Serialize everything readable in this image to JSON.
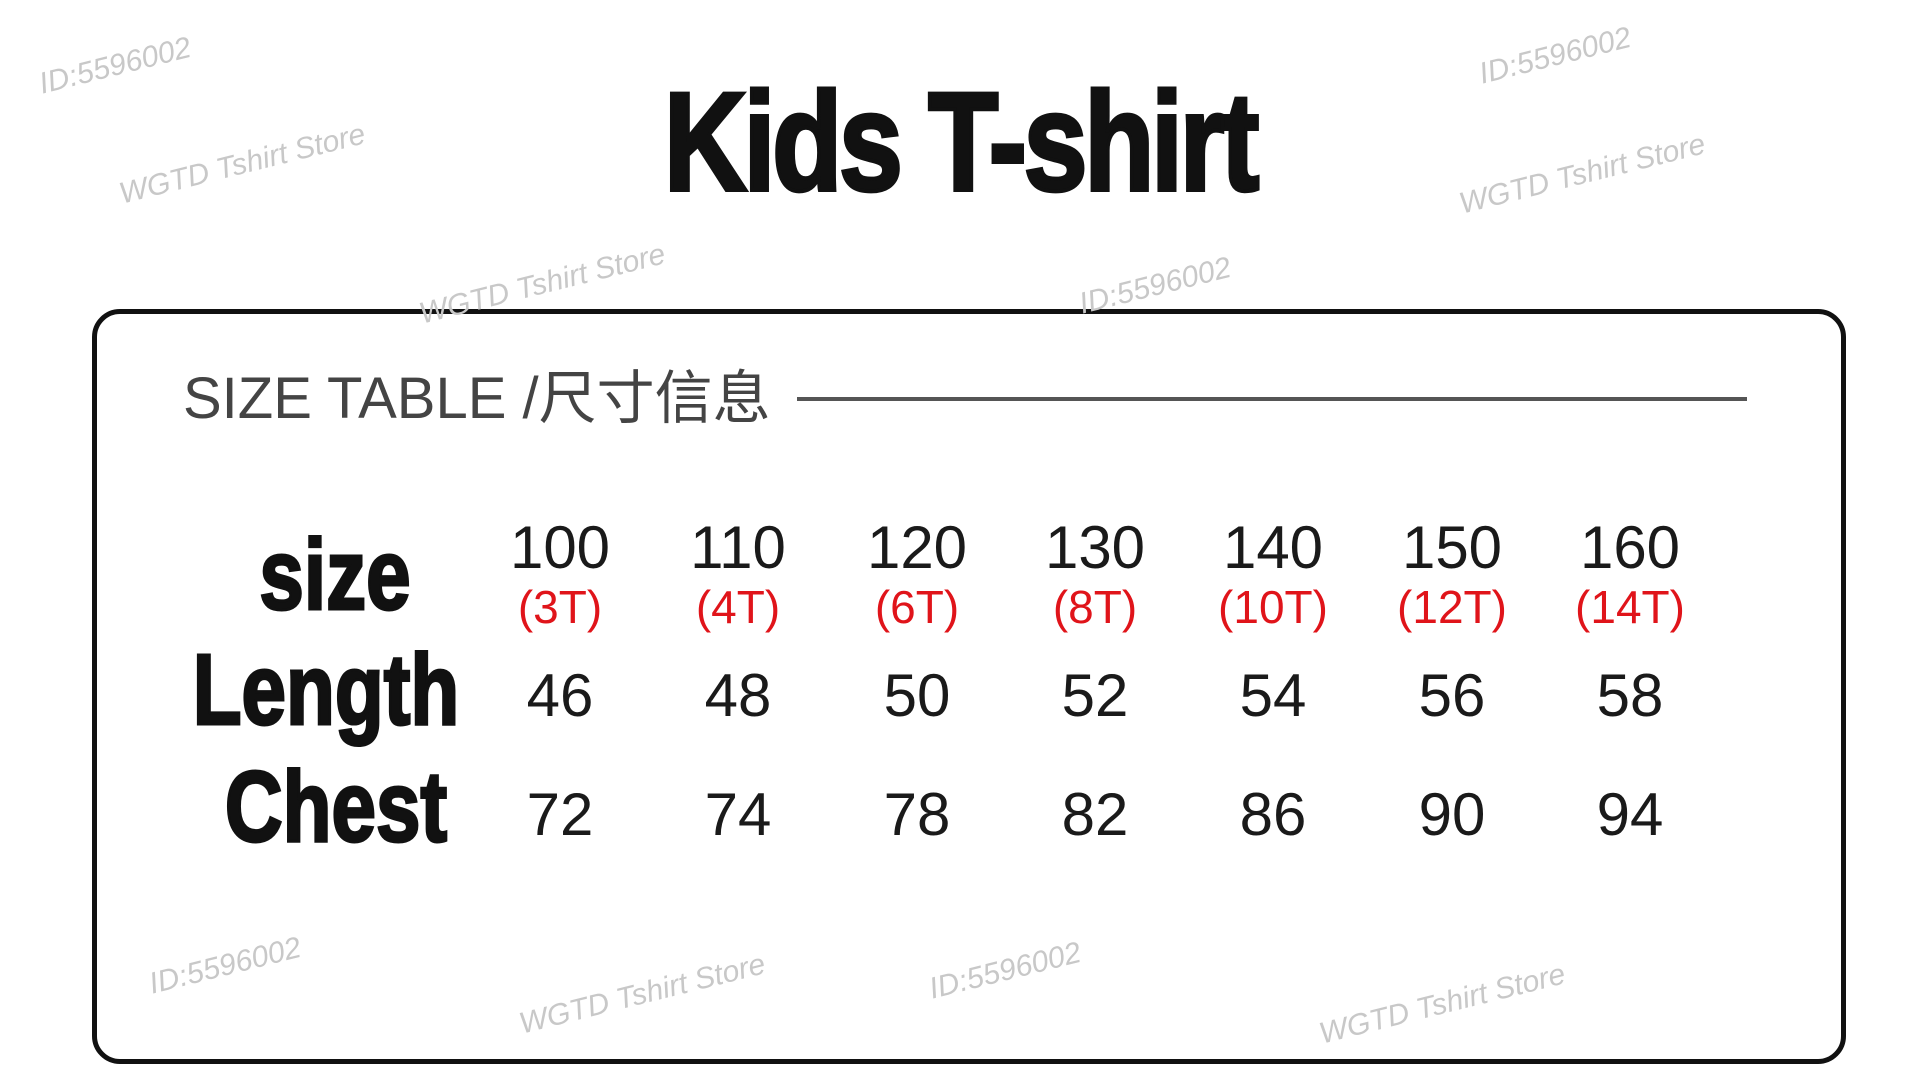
{
  "title": "Kids T-shirt",
  "table": {
    "header": "SIZE TABLE /尺寸信息",
    "row_labels": {
      "size": "size",
      "length": "Length",
      "chest": "Chest"
    },
    "columns": [
      {
        "size": "100",
        "alt": "(3T)",
        "length": "46",
        "chest": "72"
      },
      {
        "size": "110",
        "alt": "(4T)",
        "length": "48",
        "chest": "74"
      },
      {
        "size": "120",
        "alt": "(6T)",
        "length": "50",
        "chest": "78"
      },
      {
        "size": "130",
        "alt": "(8T)",
        "length": "52",
        "chest": "82"
      },
      {
        "size": "140",
        "alt": "(10T)",
        "length": "54",
        "chest": "86"
      },
      {
        "size": "150",
        "alt": "(12T)",
        "length": "56",
        "chest": "90"
      },
      {
        "size": "160",
        "alt": "(14T)",
        "length": "58",
        "chest": "94"
      }
    ]
  },
  "colors": {
    "alt_size": "#e0141a",
    "text": "#111111"
  },
  "watermarks": [
    "ID:5596002",
    "WGTD Tshirt Store"
  ]
}
